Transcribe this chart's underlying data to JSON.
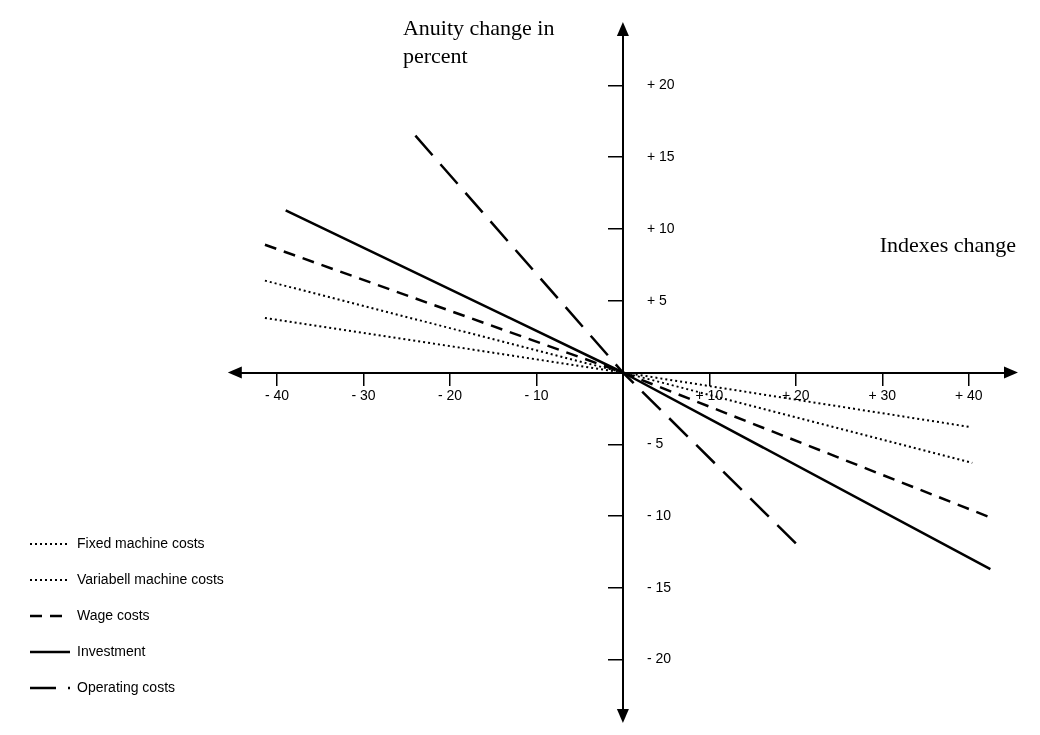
{
  "chart_data": {
    "type": "line",
    "xlabel": "Indexes change",
    "ylabel": "Anuity change in percent",
    "xlim": [
      -45,
      45
    ],
    "ylim": [
      -24,
      24
    ],
    "xticks": [
      {
        "value": -40,
        "label": "- 40"
      },
      {
        "value": -30,
        "label": "- 30"
      },
      {
        "value": -20,
        "label": "- 20"
      },
      {
        "value": -10,
        "label": "- 10"
      },
      {
        "value": 10,
        "label": "+ 10"
      },
      {
        "value": 20,
        "label": "+ 20"
      },
      {
        "value": 30,
        "label": "+ 30"
      },
      {
        "value": 40,
        "label": "+ 40"
      }
    ],
    "yticks": [
      {
        "value": 20,
        "label": "+ 20"
      },
      {
        "value": 15,
        "label": "+ 15"
      },
      {
        "value": 10,
        "label": "+ 10"
      },
      {
        "value": 5,
        "label": "+ 5"
      },
      {
        "value": -5,
        "label": "- 5"
      },
      {
        "value": -10,
        "label": "- 10"
      },
      {
        "value": -15,
        "label": "- 15"
      },
      {
        "value": -20,
        "label": "- 20"
      }
    ],
    "grid": false,
    "legend": "bottom left",
    "marker": "none",
    "series": [
      {
        "name": "Fixed machine costs",
        "color": "#000000",
        "line_style": "dotted",
        "x": [
          -41.4,
          0,
          40.2
        ],
        "values": [
          3.8,
          0,
          -3.8
        ]
      },
      {
        "name": "Variabell machine costs",
        "color": "#000000",
        "line_style": "dotted",
        "x": [
          -41.4,
          0,
          40.4
        ],
        "values": [
          6.4,
          0,
          -6.3
        ]
      },
      {
        "name": "Wage costs",
        "color": "#000000",
        "line_style": "dashed",
        "x": [
          -41.4,
          0,
          42.5
        ],
        "values": [
          8.9,
          0,
          -10.1
        ]
      },
      {
        "name": "Investment",
        "color": "#000000",
        "line_style": "solid",
        "x": [
          -39,
          0,
          42.5
        ],
        "values": [
          11.3,
          0,
          -13.7
        ]
      },
      {
        "name": "Operating costs",
        "color": "#000000",
        "line_style": "longdash",
        "x": [
          -24,
          0,
          20.5
        ],
        "values": [
          16.5,
          0,
          -12.2
        ]
      }
    ]
  }
}
